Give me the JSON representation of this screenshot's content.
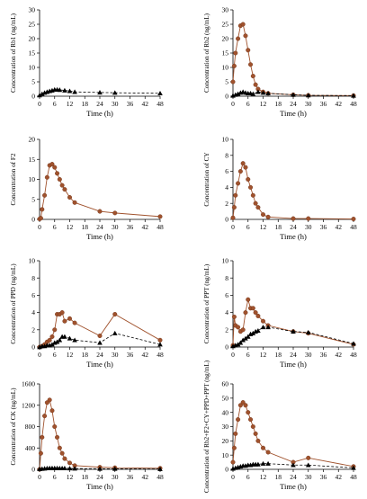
{
  "chart_data": [
    {
      "type": "line",
      "ylabel": "Concentration of Rb1 (ng/mL)",
      "xlabel": "Time (h)",
      "xticks": [
        0,
        6,
        12,
        18,
        24,
        30,
        36,
        42,
        48
      ],
      "yticks": [
        0,
        5,
        10,
        15,
        20,
        25,
        30
      ],
      "xlim": [
        0,
        48
      ],
      "ylim": [
        0,
        30
      ],
      "series": [
        {
          "style": "dashed-black-triangle",
          "color": "#000000",
          "points": [
            [
              0,
              0.3
            ],
            [
              1,
              0.8
            ],
            [
              2,
              1.2
            ],
            [
              3,
              1.5
            ],
            [
              4,
              1.8
            ],
            [
              5,
              2.0
            ],
            [
              6,
              2.3
            ],
            [
              7,
              2.3
            ],
            [
              8,
              2.2
            ],
            [
              10,
              2.0
            ],
            [
              12,
              1.8
            ],
            [
              14,
              1.5
            ],
            [
              24,
              1.3
            ],
            [
              30,
              1.2
            ],
            [
              48,
              1.0
            ]
          ]
        }
      ]
    },
    {
      "type": "line",
      "ylabel": "Concentration of Rb2 (ng/mL)",
      "xlabel": "Time (h)",
      "xticks": [
        0,
        6,
        12,
        18,
        24,
        30,
        36,
        42,
        48
      ],
      "yticks": [
        0,
        5,
        10,
        15,
        20,
        25,
        30
      ],
      "xlim": [
        0,
        48
      ],
      "ylim": [
        0,
        30
      ],
      "series": [
        {
          "style": "solid-red-circle",
          "color": "#a0522d",
          "points": [
            [
              0,
              5
            ],
            [
              0.5,
              10.5
            ],
            [
              1,
              15
            ],
            [
              2,
              20
            ],
            [
              3,
              24.5
            ],
            [
              4,
              25
            ],
            [
              5,
              21
            ],
            [
              6,
              16
            ],
            [
              7,
              11
            ],
            [
              8,
              7
            ],
            [
              9,
              4
            ],
            [
              10,
              2.5
            ],
            [
              12,
              1.5
            ],
            [
              14,
              1
            ],
            [
              24,
              0.5
            ],
            [
              30,
              0.3
            ],
            [
              48,
              0.2
            ]
          ]
        },
        {
          "style": "dashed-black-triangle",
          "color": "#000000",
          "points": [
            [
              0,
              0.2
            ],
            [
              1,
              0.5
            ],
            [
              2,
              0.8
            ],
            [
              3,
              1.2
            ],
            [
              4,
              1.5
            ],
            [
              5,
              1.2
            ],
            [
              6,
              1.0
            ],
            [
              7,
              1.0
            ],
            [
              8,
              0.8
            ],
            [
              10,
              1.5
            ],
            [
              12,
              1.2
            ],
            [
              14,
              1.0
            ],
            [
              24,
              0.5
            ],
            [
              30,
              0.3
            ],
            [
              48,
              0.2
            ]
          ]
        }
      ]
    },
    {
      "type": "line",
      "ylabel": "Concentration of F2",
      "xlabel": "Time (h)",
      "xticks": [
        0,
        6,
        12,
        18,
        24,
        30,
        36,
        42,
        48
      ],
      "yticks": [
        0,
        5,
        10,
        15,
        20
      ],
      "xlim": [
        0,
        48
      ],
      "ylim": [
        0,
        20
      ],
      "series": [
        {
          "style": "solid-red-circle",
          "color": "#a0522d",
          "points": [
            [
              0,
              0.1
            ],
            [
              0.5,
              0.3
            ],
            [
              1,
              2.5
            ],
            [
              2,
              6
            ],
            [
              3,
              10.5
            ],
            [
              4,
              13.5
            ],
            [
              5,
              13.8
            ],
            [
              6,
              13
            ],
            [
              7,
              11.5
            ],
            [
              8,
              10
            ],
            [
              9,
              8.5
            ],
            [
              10,
              7.5
            ],
            [
              12,
              5.5
            ],
            [
              14,
              4.2
            ],
            [
              24,
              2
            ],
            [
              30,
              1.6
            ],
            [
              48,
              0.7
            ]
          ]
        }
      ]
    },
    {
      "type": "line",
      "ylabel": "Concentration of CY",
      "xlabel": "Time (h)",
      "xticks": [
        0,
        6,
        12,
        18,
        24,
        30,
        36,
        42,
        48
      ],
      "yticks": [
        0,
        2,
        4,
        6,
        8,
        10
      ],
      "xlim": [
        0,
        48
      ],
      "ylim": [
        0,
        10
      ],
      "series": [
        {
          "style": "solid-red-circle",
          "color": "#a0522d",
          "points": [
            [
              0,
              0.2
            ],
            [
              0.5,
              1.5
            ],
            [
              1,
              3
            ],
            [
              2,
              4.5
            ],
            [
              3,
              6
            ],
            [
              4,
              7
            ],
            [
              5,
              6.5
            ],
            [
              6,
              5
            ],
            [
              7,
              4
            ],
            [
              8,
              3
            ],
            [
              9,
              2
            ],
            [
              10,
              1.5
            ],
            [
              12,
              0.6
            ],
            [
              14,
              0.3
            ],
            [
              24,
              0.1
            ],
            [
              30,
              0.1
            ],
            [
              48,
              0.05
            ]
          ]
        }
      ]
    },
    {
      "type": "line",
      "ylabel": "Concentration of PPD (ng/mL)",
      "xlabel": "Time (h)",
      "xticks": [
        0,
        6,
        12,
        18,
        24,
        30,
        36,
        42,
        48
      ],
      "yticks": [
        0,
        2,
        4,
        6,
        8,
        10
      ],
      "xlim": [
        0,
        48
      ],
      "ylim": [
        0,
        10
      ],
      "series": [
        {
          "style": "solid-red-circle",
          "color": "#a0522d",
          "points": [
            [
              0,
              0
            ],
            [
              1,
              0.1
            ],
            [
              2,
              0.3
            ],
            [
              3,
              0.6
            ],
            [
              4,
              0.8
            ],
            [
              5,
              1.2
            ],
            [
              6,
              2
            ],
            [
              7,
              3.8
            ],
            [
              8,
              3.8
            ],
            [
              9,
              4
            ],
            [
              10,
              3
            ],
            [
              12,
              3.3
            ],
            [
              14,
              2.8
            ],
            [
              24,
              1.3
            ],
            [
              30,
              3.8
            ],
            [
              48,
              0.8
            ]
          ]
        },
        {
          "style": "dashed-black-triangle",
          "color": "#000000",
          "points": [
            [
              0,
              0
            ],
            [
              1,
              0.1
            ],
            [
              2,
              0.1
            ],
            [
              3,
              0.2
            ],
            [
              4,
              0.2
            ],
            [
              5,
              0.3
            ],
            [
              6,
              0.5
            ],
            [
              7,
              0.6
            ],
            [
              8,
              0.8
            ],
            [
              9,
              1.2
            ],
            [
              10,
              1.2
            ],
            [
              12,
              1.0
            ],
            [
              14,
              0.8
            ],
            [
              24,
              0.5
            ],
            [
              30,
              1.6
            ],
            [
              48,
              0.3
            ]
          ]
        }
      ]
    },
    {
      "type": "line",
      "ylabel": "Concentration of PPT (ng/mL)",
      "xlabel": "Time (h)",
      "xticks": [
        0,
        6,
        12,
        18,
        24,
        30,
        36,
        42,
        48
      ],
      "yticks": [
        0,
        2,
        4,
        6,
        8,
        10
      ],
      "xlim": [
        0,
        48
      ],
      "ylim": [
        0,
        10
      ],
      "series": [
        {
          "style": "solid-red-circle",
          "color": "#a0522d",
          "points": [
            [
              0,
              0.2
            ],
            [
              0.5,
              3.5
            ],
            [
              1,
              2.5
            ],
            [
              2,
              2.3
            ],
            [
              3,
              1.8
            ],
            [
              4,
              2
            ],
            [
              5,
              4
            ],
            [
              6,
              5.5
            ],
            [
              7,
              4.5
            ],
            [
              8,
              4.5
            ],
            [
              9,
              4
            ],
            [
              10,
              3.6
            ],
            [
              12,
              3
            ],
            [
              14,
              2.5
            ],
            [
              24,
              1.8
            ],
            [
              30,
              1.6
            ],
            [
              48,
              0.3
            ]
          ]
        },
        {
          "style": "dashed-black-triangle",
          "color": "#000000",
          "points": [
            [
              0,
              0.1
            ],
            [
              1,
              0.2
            ],
            [
              2,
              0.3
            ],
            [
              3,
              0.5
            ],
            [
              4,
              0.8
            ],
            [
              5,
              1
            ],
            [
              6,
              1.2
            ],
            [
              7,
              1.5
            ],
            [
              8,
              1.6
            ],
            [
              9,
              1.8
            ],
            [
              10,
              1.9
            ],
            [
              12,
              2.3
            ],
            [
              14,
              2.3
            ],
            [
              24,
              1.8
            ],
            [
              30,
              1.7
            ],
            [
              48,
              0.4
            ]
          ]
        }
      ]
    },
    {
      "type": "line",
      "ylabel": "Concentration of CK (ng/mL)",
      "xlabel": "Time (h)",
      "xticks": [
        0,
        6,
        12,
        18,
        24,
        30,
        36,
        42,
        48
      ],
      "yticks": [
        0,
        400,
        800,
        1200,
        1600
      ],
      "xlim": [
        0,
        48
      ],
      "ylim": [
        0,
        1600
      ],
      "series": [
        {
          "style": "solid-red-circle",
          "color": "#a0522d",
          "points": [
            [
              0,
              0
            ],
            [
              0.5,
              300
            ],
            [
              1,
              600
            ],
            [
              2,
              1000
            ],
            [
              3,
              1250
            ],
            [
              4,
              1300
            ],
            [
              5,
              1100
            ],
            [
              6,
              800
            ],
            [
              7,
              600
            ],
            [
              8,
              400
            ],
            [
              9,
              300
            ],
            [
              10,
              200
            ],
            [
              12,
              120
            ],
            [
              14,
              70
            ],
            [
              24,
              40
            ],
            [
              30,
              30
            ],
            [
              48,
              20
            ]
          ]
        },
        {
          "style": "dashed-black-triangle",
          "color": "#000000",
          "points": [
            [
              0,
              5
            ],
            [
              1,
              10
            ],
            [
              2,
              15
            ],
            [
              3,
              20
            ],
            [
              4,
              22
            ],
            [
              5,
              22
            ],
            [
              6,
              22
            ],
            [
              7,
              22
            ],
            [
              8,
              20
            ],
            [
              9,
              20
            ],
            [
              10,
              20
            ],
            [
              12,
              18
            ],
            [
              14,
              15
            ],
            [
              24,
              10
            ],
            [
              30,
              10
            ],
            [
              48,
              5
            ]
          ]
        }
      ]
    },
    {
      "type": "line",
      "ylabel": "Concentration of Rb2+F2+CY+PPD+PPT (ng/mL)",
      "xlabel": "Time (h)",
      "xticks": [
        0,
        6,
        12,
        18,
        24,
        30,
        36,
        42,
        48
      ],
      "yticks": [
        0,
        10,
        20,
        30,
        40,
        50,
        60
      ],
      "xlim": [
        0,
        48
      ],
      "ylim": [
        0,
        60
      ],
      "series": [
        {
          "style": "solid-red-circle",
          "color": "#a0522d",
          "points": [
            [
              0,
              5
            ],
            [
              0.5,
              15
            ],
            [
              1,
              25
            ],
            [
              2,
              35
            ],
            [
              3,
              45
            ],
            [
              4,
              47
            ],
            [
              5,
              45
            ],
            [
              6,
              40
            ],
            [
              7,
              35
            ],
            [
              8,
              30
            ],
            [
              9,
              25
            ],
            [
              10,
              20
            ],
            [
              12,
              15
            ],
            [
              14,
              12
            ],
            [
              24,
              5
            ],
            [
              30,
              8
            ],
            [
              48,
              2
            ]
          ]
        },
        {
          "style": "dashed-black-triangle",
          "color": "#000000",
          "points": [
            [
              0,
              0.5
            ],
            [
              1,
              1
            ],
            [
              2,
              1.5
            ],
            [
              3,
              2
            ],
            [
              4,
              2.5
            ],
            [
              5,
              2.5
            ],
            [
              6,
              3
            ],
            [
              7,
              3
            ],
            [
              8,
              3.5
            ],
            [
              9,
              3.5
            ],
            [
              10,
              3.5
            ],
            [
              12,
              4
            ],
            [
              14,
              4
            ],
            [
              24,
              3
            ],
            [
              30,
              3
            ],
            [
              48,
              1
            ]
          ]
        }
      ]
    }
  ]
}
